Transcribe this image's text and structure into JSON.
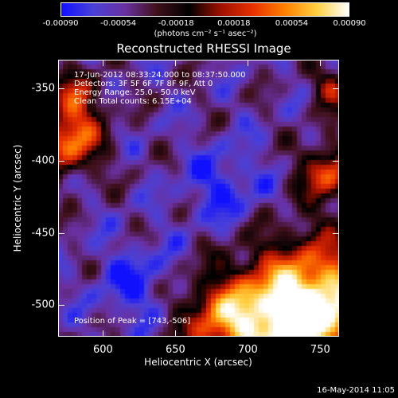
{
  "colorbar": {
    "ticks": [
      "-0.00090",
      "-0.00054",
      "-0.00018",
      "0.00018",
      "0.00054",
      "0.00090"
    ],
    "units": "(photons cm⁻² s⁻¹ asec⁻²)",
    "colors": [
      "#1010ff",
      "#4a40d8",
      "#6a30a0",
      "#40101a",
      "#000000",
      "#a01000",
      "#e83000",
      "#ff8000",
      "#ffd040",
      "#ffffff"
    ]
  },
  "chart_data": {
    "type": "heatmap",
    "title": "Reconstructed RHESSI Image",
    "xlabel": "Heliocentric X (arcsec)",
    "ylabel": "Heliocentric Y (arcsec)",
    "xlim": [
      569,
      763
    ],
    "ylim": [
      -522,
      -330
    ],
    "x_ticks": [
      600,
      650,
      700,
      750
    ],
    "y_ticks": [
      -350,
      -400,
      -450,
      -500
    ],
    "color_range": [
      -0.0009,
      0.0009
    ],
    "annotations": {
      "time": "17-Jun-2012 08:33:24.000 to 08:37:50.000",
      "detectors": "Detectors: 3F 5F 6F 7F 8F 9F, Att 0",
      "energy": "Energy Range: 25.0 - 50.0 keV",
      "clean": "Clean    Total counts: 6.15E+04",
      "peak": "Position of Peak = [743,-506]"
    },
    "peak": [
      743,
      -506
    ]
  },
  "timestamp": "16-May-2014 11:05"
}
